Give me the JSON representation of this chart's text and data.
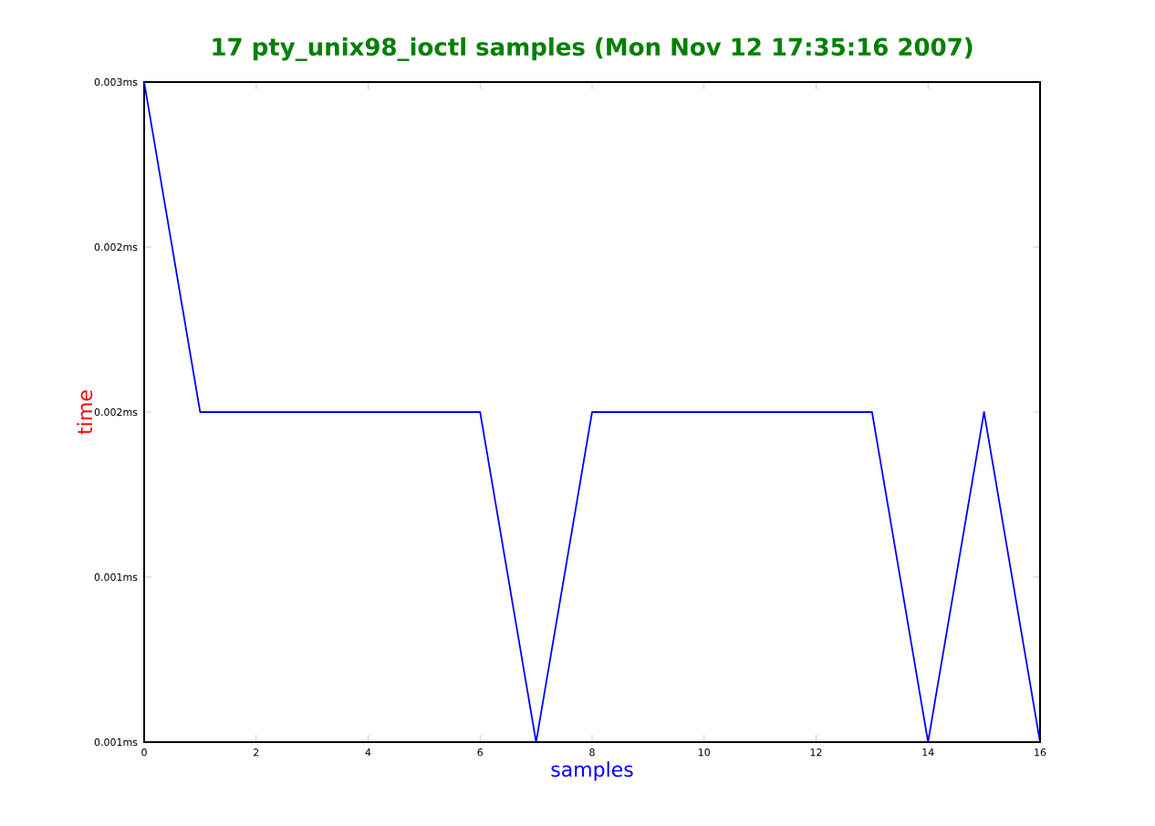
{
  "chart_data": {
    "type": "line",
    "title": "17 pty_unix98_ioctl samples (Mon Nov 12 17:35:16 2007)",
    "xlabel": "samples",
    "ylabel": "time",
    "x": [
      0,
      1,
      2,
      3,
      4,
      5,
      6,
      7,
      8,
      9,
      10,
      11,
      12,
      13,
      14,
      15,
      16
    ],
    "series": [
      {
        "color": "#0000ff",
        "values": [
          0.003,
          0.002,
          0.002,
          0.002,
          0.002,
          0.002,
          0.002,
          0.001,
          0.002,
          0.002,
          0.002,
          0.002,
          0.002,
          0.002,
          0.001,
          0.002,
          0.001
        ]
      }
    ],
    "xlim": [
      0,
      16
    ],
    "xticks": [
      0,
      2,
      4,
      6,
      8,
      10,
      12,
      14,
      16
    ],
    "ylim": [
      0.001,
      0.003
    ],
    "yticks": [
      {
        "value": 0.001,
        "label": "0.001ms"
      },
      {
        "value": 0.0015,
        "label": "0.001ms"
      },
      {
        "value": 0.002,
        "label": "0.002ms"
      },
      {
        "value": 0.0025,
        "label": "0.002ms"
      },
      {
        "value": 0.003,
        "label": "0.003ms"
      }
    ],
    "grid": false,
    "marker": "none",
    "line_style": "solid"
  }
}
